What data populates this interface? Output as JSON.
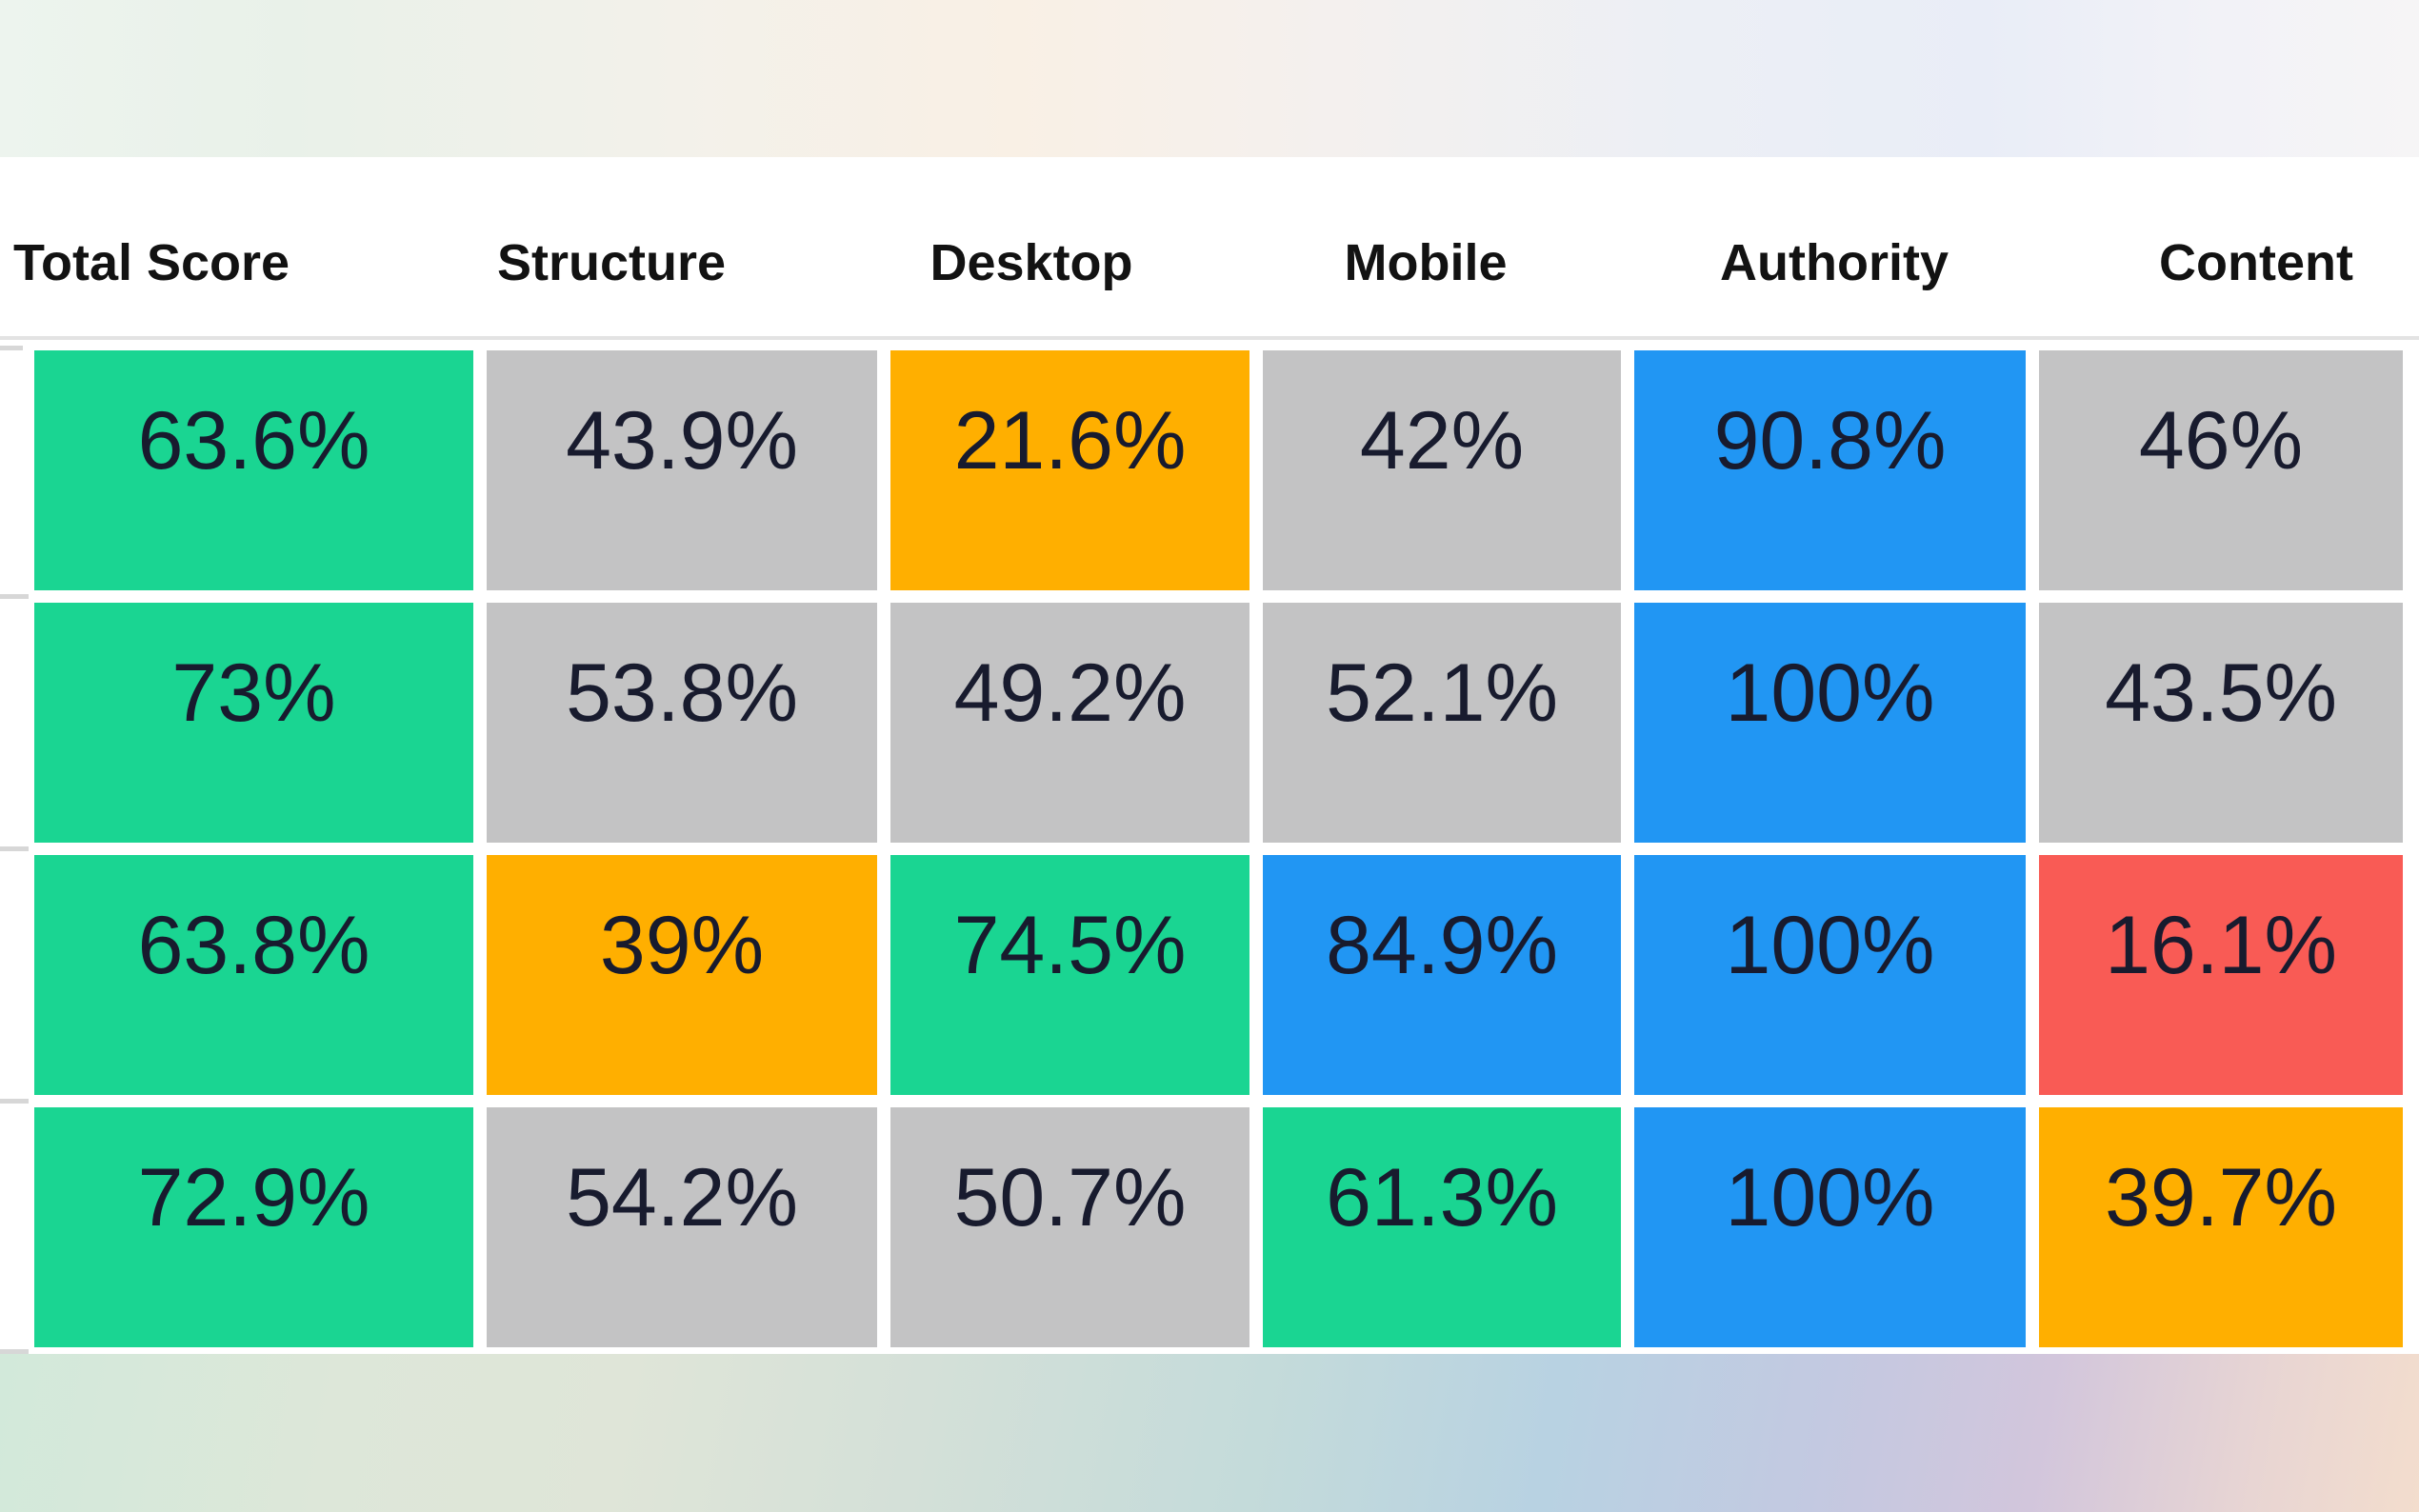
{
  "table": {
    "columns": [
      "Total Score",
      "Structure",
      "Desktop",
      "Mobile",
      "Authority",
      "Content"
    ],
    "rows": [
      {
        "cells": [
          {
            "value": "63.6%",
            "color": "green"
          },
          {
            "value": "43.9%",
            "color": "gray"
          },
          {
            "value": "21.6%",
            "color": "orange"
          },
          {
            "value": "42%",
            "color": "gray"
          },
          {
            "value": "90.8%",
            "color": "blue"
          },
          {
            "value": "46%",
            "color": "gray"
          }
        ]
      },
      {
        "cells": [
          {
            "value": "73%",
            "color": "green"
          },
          {
            "value": "53.8%",
            "color": "gray"
          },
          {
            "value": "49.2%",
            "color": "gray"
          },
          {
            "value": "52.1%",
            "color": "gray"
          },
          {
            "value": "100%",
            "color": "blue"
          },
          {
            "value": "43.5%",
            "color": "gray"
          }
        ]
      },
      {
        "cells": [
          {
            "value": "63.8%",
            "color": "green"
          },
          {
            "value": "39%",
            "color": "orange"
          },
          {
            "value": "74.5%",
            "color": "green"
          },
          {
            "value": "84.9%",
            "color": "blue"
          },
          {
            "value": "100%",
            "color": "blue"
          },
          {
            "value": "16.1%",
            "color": "red"
          }
        ]
      },
      {
        "cells": [
          {
            "value": "72.9%",
            "color": "green"
          },
          {
            "value": "54.2%",
            "color": "gray"
          },
          {
            "value": "50.7%",
            "color": "gray"
          },
          {
            "value": "61.3%",
            "color": "green"
          },
          {
            "value": "100%",
            "color": "blue"
          },
          {
            "value": "39.7%",
            "color": "orange"
          }
        ]
      }
    ]
  },
  "colors": {
    "green": "#1ad592",
    "gray": "#c3c3c4",
    "orange": "#ffaf00",
    "blue": "#2196f3",
    "red": "#f95b55",
    "cell_text": "#181b2e",
    "header_text": "#121212"
  }
}
